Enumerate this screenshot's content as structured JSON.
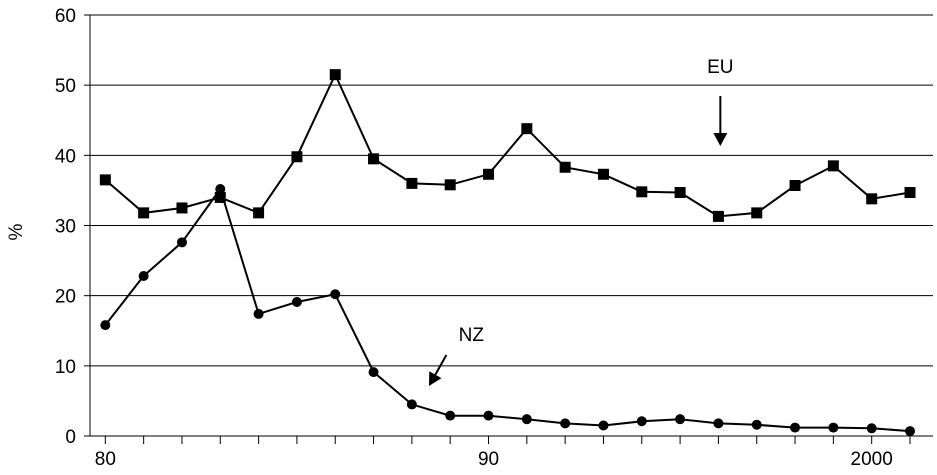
{
  "chart_data": {
    "type": "line",
    "title": "",
    "xlabel": "",
    "ylabel": "%",
    "xlim": [
      1979.6,
      2001.6
    ],
    "ylim": [
      0,
      60
    ],
    "yticks": [
      0,
      10,
      20,
      30,
      40,
      50,
      60
    ],
    "ytick_labels": [
      "0",
      "10",
      "20",
      "30",
      "40",
      "50",
      "60"
    ],
    "xtick_positions": [
      1980,
      1990,
      2000
    ],
    "xtick_labels": [
      "80",
      "90",
      "2000"
    ],
    "grid": "horizontal",
    "series": [
      {
        "name": "EU",
        "marker": "square",
        "x": [
          1980,
          1981,
          1982,
          1983,
          1984,
          1985,
          1986,
          1987,
          1988,
          1989,
          1990,
          1991,
          1992,
          1993,
          1994,
          1995,
          1996,
          1997,
          1998,
          1999,
          2000,
          2001
        ],
        "values": [
          36.5,
          31.8,
          32.5,
          34,
          31.8,
          39.8,
          51.5,
          39.5,
          36,
          35.8,
          37.3,
          43.8,
          38.3,
          37.3,
          34.8,
          34.7,
          31.3,
          31.8,
          35.7,
          38.5,
          33.8,
          34.7
        ]
      },
      {
        "name": "NZ",
        "marker": "circle",
        "x": [
          1980,
          1981,
          1982,
          1983,
          1984,
          1985,
          1986,
          1987,
          1988,
          1989,
          1990,
          1991,
          1992,
          1993,
          1994,
          1995,
          1996,
          1997,
          1998,
          1999,
          2000,
          2001
        ],
        "values": [
          15.8,
          22.8,
          27.6,
          35.2,
          17.4,
          19.1,
          20.2,
          9.1,
          4.5,
          2.9,
          2.9,
          2.4,
          1.8,
          1.5,
          2.1,
          2.4,
          1.8,
          1.6,
          1.2,
          1.2,
          1.1,
          0.7
        ]
      }
    ],
    "annotations": [
      {
        "text": "EU",
        "series": "EU"
      },
      {
        "text": "NZ",
        "series": "NZ"
      }
    ]
  }
}
